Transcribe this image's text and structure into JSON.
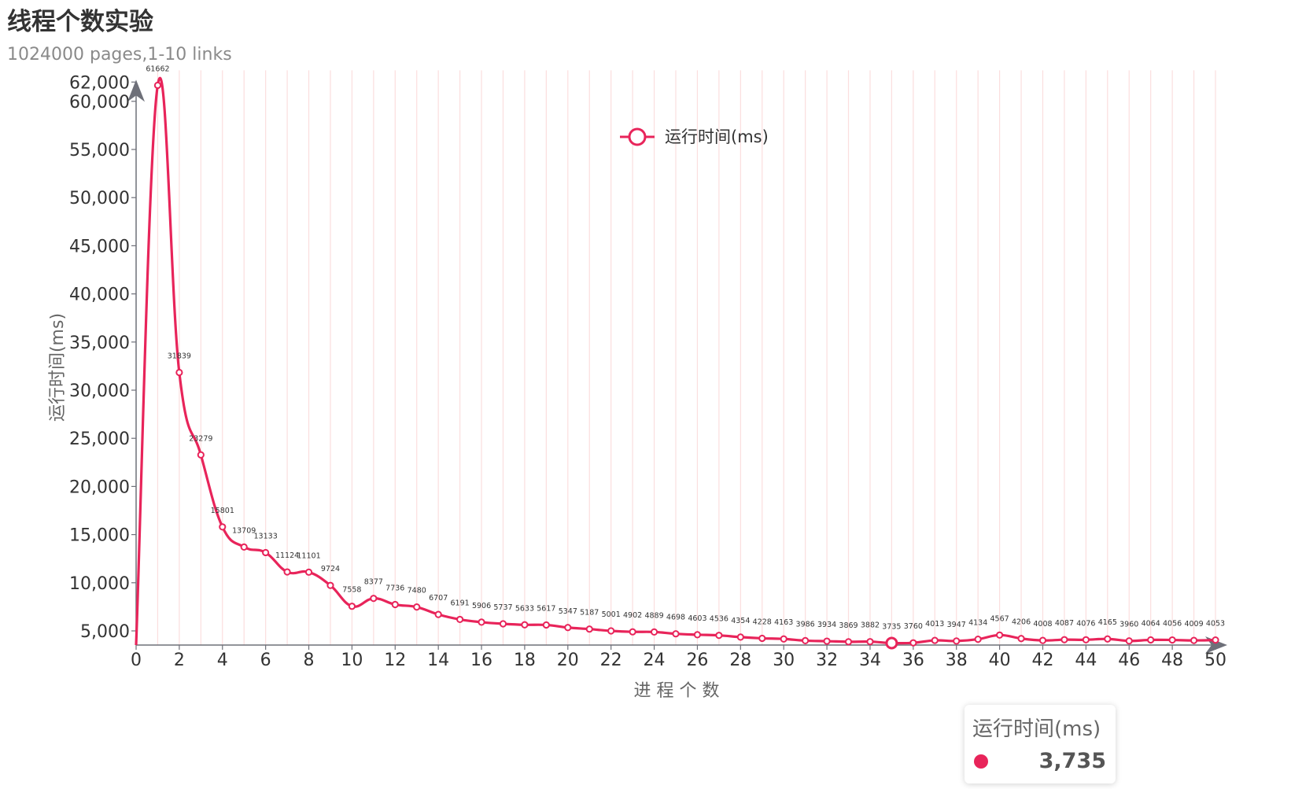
{
  "colors": {
    "series": "#e8245a",
    "grid": "#fbdede",
    "axis": "#6e7079",
    "text": "#333333"
  },
  "chart_data": {
    "type": "line",
    "title": "线程个数实验",
    "subtitle": "1024000 pages,1-10 links",
    "xlabel": "进 程 个 数",
    "ylabel": "运行时间(ms)",
    "xlim": [
      0,
      50
    ],
    "ylim": [
      3735,
      62000
    ],
    "yticks": [
      62000,
      60000,
      55000,
      50000,
      45000,
      40000,
      35000,
      30000,
      25000,
      20000,
      15000,
      10000,
      5000
    ],
    "ytick_labels": [
      "62,000",
      "60,000",
      "55,000",
      "50,000",
      "45,000",
      "40,000",
      "35,000",
      "30,000",
      "25,000",
      "20,000",
      "15,000",
      "10,000",
      "5,000"
    ],
    "xticks": [
      0,
      2,
      4,
      6,
      8,
      10,
      12,
      14,
      16,
      18,
      20,
      22,
      24,
      26,
      28,
      30,
      32,
      34,
      36,
      38,
      40,
      42,
      44,
      46,
      48,
      50
    ],
    "grid": "vertical",
    "legend": {
      "position": "top-center",
      "label": "运行时间(ms)"
    },
    "series": [
      {
        "name": "运行时间(ms)",
        "x": [
          1,
          2,
          3,
          4,
          5,
          6,
          7,
          8,
          9,
          10,
          11,
          12,
          13,
          14,
          15,
          16,
          17,
          18,
          19,
          20,
          21,
          22,
          23,
          24,
          25,
          26,
          27,
          28,
          29,
          30,
          31,
          32,
          33,
          34,
          35,
          36,
          37,
          38,
          39,
          40,
          41,
          42,
          43,
          44,
          45,
          46,
          47,
          48,
          49,
          50
        ],
        "values": [
          61662,
          31839,
          23279,
          15801,
          13709,
          13133,
          11124,
          11101,
          9724,
          7558,
          8377,
          7736,
          7480,
          6707,
          6191,
          5906,
          5737,
          5633,
          5617,
          5347,
          5187,
          5001,
          4902,
          4889,
          4698,
          4603,
          4536,
          4354,
          4228,
          4163,
          3986,
          3934,
          3869,
          3882,
          3735,
          3760,
          4013,
          3947,
          4134,
          4567,
          4206,
          4008,
          4087,
          4076,
          4165,
          3960,
          4064,
          4056,
          4009,
          4053
        ]
      }
    ],
    "highlighted_point": {
      "x": 35,
      "value": 3735
    }
  },
  "tooltip": {
    "series_name": "运行时间(ms)",
    "value": "3,735"
  }
}
